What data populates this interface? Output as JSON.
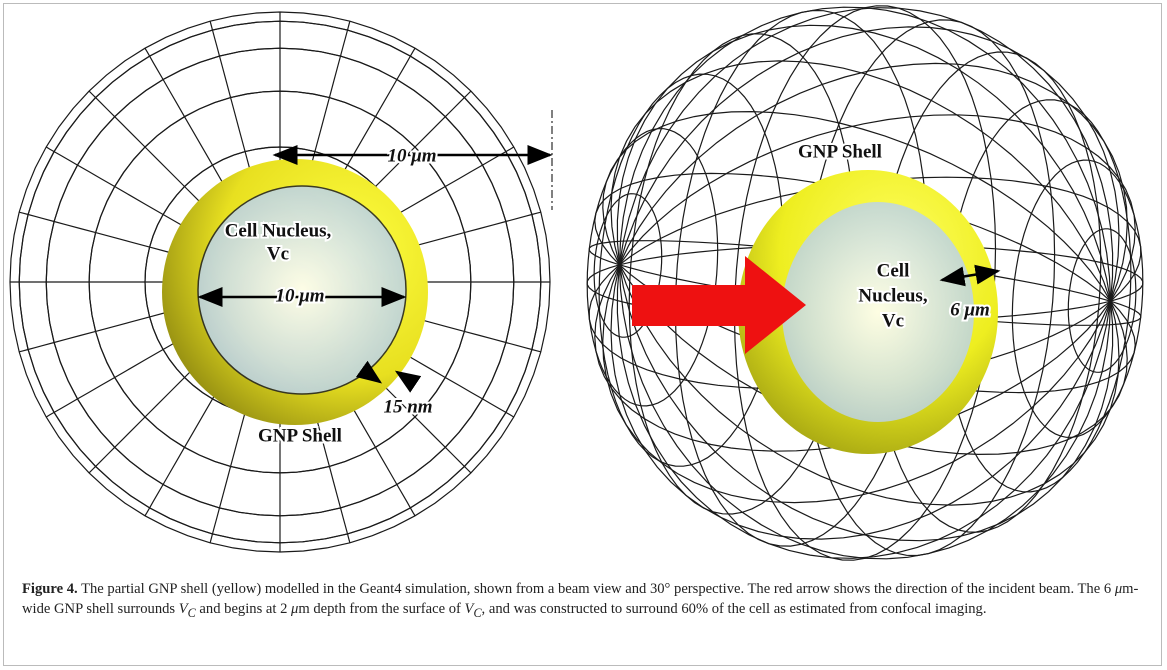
{
  "left_panel": {
    "top_dimension": "10 μm",
    "nucleus_label": [
      "Cell Nucleus,",
      "Vc"
    ],
    "nucleus_dimension": "10 μm",
    "shell_thickness": "15 nm",
    "shell_label": "GNP Shell"
  },
  "right_panel": {
    "shell_label": "GNP Shell",
    "nucleus_label": [
      "Cell",
      "Nucleus,",
      "Vc"
    ],
    "shell_width": "6 μm"
  },
  "caption": {
    "label": "Figure 4.",
    "text": [
      "The partial GNP shell (yellow) modelled in the Geant4 simulation, shown from a beam view and 30° perspective. The red arrow shows the direction of the incident beam. The 6 ",
      "μ",
      "m-wide GNP shell surrounds ",
      "V",
      "C",
      " and begins at 2 ",
      "μ",
      "m depth from the surface of ",
      "V",
      "C",
      ", and was constructed to surround 60% of the cell as estimated from confocal imaging."
    ]
  }
}
